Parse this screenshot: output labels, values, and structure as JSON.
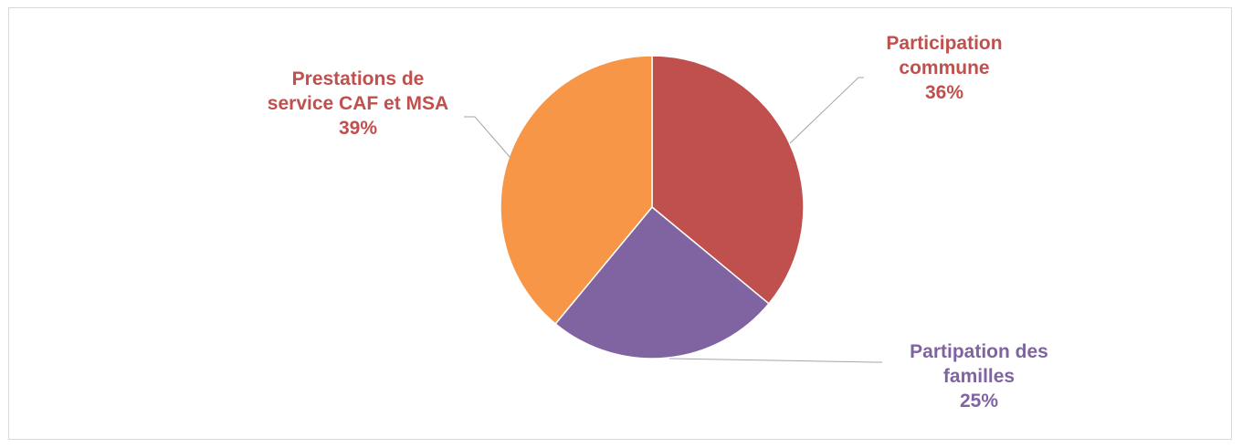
{
  "chart_data": {
    "type": "pie",
    "title": "",
    "slices": [
      {
        "label_lines": [
          "Participation",
          "commune"
        ],
        "value": 36,
        "percent_text": "36%",
        "color": "#c0504d",
        "label_color": "#c0504d"
      },
      {
        "label_lines": [
          "Partipation des",
          "familles"
        ],
        "value": 25,
        "percent_text": "25%",
        "color": "#8064a2",
        "label_color": "#8064a2"
      },
      {
        "label_lines": [
          "Prestations de",
          "service CAF et MSA"
        ],
        "value": 39,
        "percent_text": "39%",
        "color": "#f79646",
        "label_color": "#c0504d"
      }
    ],
    "start_angle": "12 o'clock",
    "direction": "clockwise",
    "legend": "none",
    "data_labels": "outside with leader lines"
  }
}
